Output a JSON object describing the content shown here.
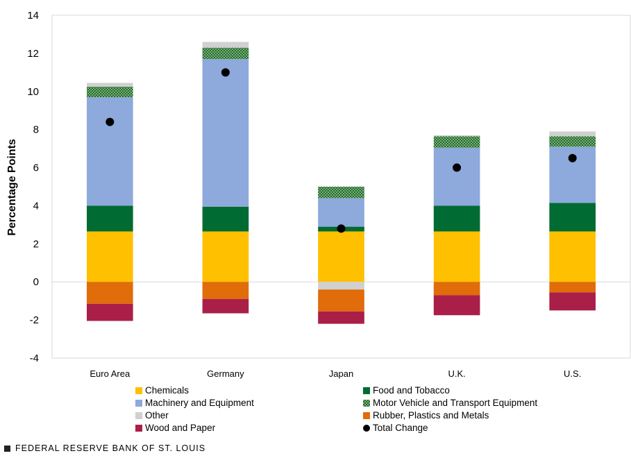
{
  "chart_data": {
    "type": "bar",
    "stacked": true,
    "title": "",
    "xlabel": "",
    "ylabel": "Percentage Points",
    "ylim": [
      -4,
      14
    ],
    "yticks": [
      -4,
      -2,
      0,
      2,
      4,
      6,
      8,
      10,
      12,
      14
    ],
    "gridlines": false,
    "categories": [
      "Euro Area",
      "Germany",
      "Japan",
      "U.K.",
      "U.S."
    ],
    "series": [
      {
        "name": "Chemicals",
        "color": "#FFC000",
        "pattern": "solid",
        "values": [
          2.65,
          2.65,
          2.65,
          2.65,
          2.65
        ]
      },
      {
        "name": "Food and Tobacco",
        "color": "#006B33",
        "pattern": "solid",
        "values": [
          1.35,
          1.3,
          0.25,
          1.35,
          1.5
        ]
      },
      {
        "name": "Machinery and Equipment",
        "color": "#8EA9DB",
        "pattern": "solid",
        "values": [
          5.7,
          7.75,
          1.5,
          3.05,
          2.95
        ]
      },
      {
        "name": "Motor Vehicle and Transport Equipment",
        "color": "#548235",
        "pattern": "dots",
        "values": [
          0.55,
          0.6,
          0.6,
          0.6,
          0.55
        ]
      },
      {
        "name": "Other",
        "color": "#D0D0D0",
        "pattern": "solid",
        "values": [
          0.2,
          0.3,
          -0.4,
          0.05,
          0.25
        ]
      },
      {
        "name": "Rubber, Plastics and Metals",
        "color": "#E06C0A",
        "pattern": "solid",
        "values": [
          -1.15,
          -0.9,
          -1.15,
          -0.7,
          -0.55
        ]
      },
      {
        "name": "Wood and Paper",
        "color": "#AA1F48",
        "pattern": "solid",
        "values": [
          -0.9,
          -0.75,
          -0.65,
          -1.05,
          -0.95
        ]
      }
    ],
    "total_change": {
      "name": "Total Change",
      "color": "#000000",
      "values": [
        8.4,
        11.0,
        2.8,
        6.0,
        6.5
      ]
    },
    "legend_position": "bottom"
  },
  "legend": [
    {
      "label": "Chemicals",
      "color": "#FFC000",
      "pattern": "solid"
    },
    {
      "label": "Food and Tobacco",
      "color": "#006B33",
      "pattern": "solid"
    },
    {
      "label": "Machinery and Equipment",
      "color": "#8EA9DB",
      "pattern": "solid"
    },
    {
      "label": "Motor Vehicle and Transport Equipment",
      "color": "#548235",
      "pattern": "dots"
    },
    {
      "label": "Other",
      "color": "#D0D0D0",
      "pattern": "solid"
    },
    {
      "label": "Rubber, Plastics and Metals",
      "color": "#E06C0A",
      "pattern": "solid"
    },
    {
      "label": "Wood and Paper",
      "color": "#AA1F48",
      "pattern": "solid"
    },
    {
      "label": "Total Change",
      "color": "#000000",
      "pattern": "marker"
    }
  ],
  "footer": {
    "text": "FEDERAL RESERVE BANK OF ST. LOUIS"
  }
}
